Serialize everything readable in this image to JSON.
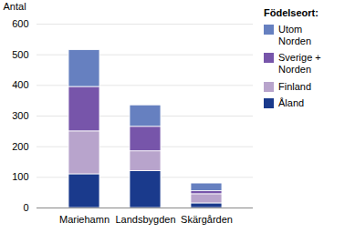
{
  "chart_data": {
    "type": "bar",
    "stacked": true,
    "categories": [
      "Mariehamn",
      "Landsbygden",
      "Skärgården"
    ],
    "series": [
      {
        "name": "Åland",
        "color": "#1A3A8C",
        "values": [
          110,
          120,
          15
        ]
      },
      {
        "name": "Finland",
        "color": "#B8A4CC",
        "values": [
          140,
          65,
          30
        ]
      },
      {
        "name": "Sverige +\nNorden",
        "color": "#7755AA",
        "values": [
          145,
          80,
          10
        ]
      },
      {
        "name": "Utom\nNorden",
        "color": "#6680C0",
        "values": [
          120,
          70,
          25
        ]
      }
    ],
    "ylabel": "Antal",
    "ylim": [
      0,
      600
    ],
    "yticks": [
      0,
      100,
      200,
      300,
      400,
      500,
      600
    ],
    "grid": true,
    "legend": "right",
    "legend_title": "Födelseort:"
  }
}
